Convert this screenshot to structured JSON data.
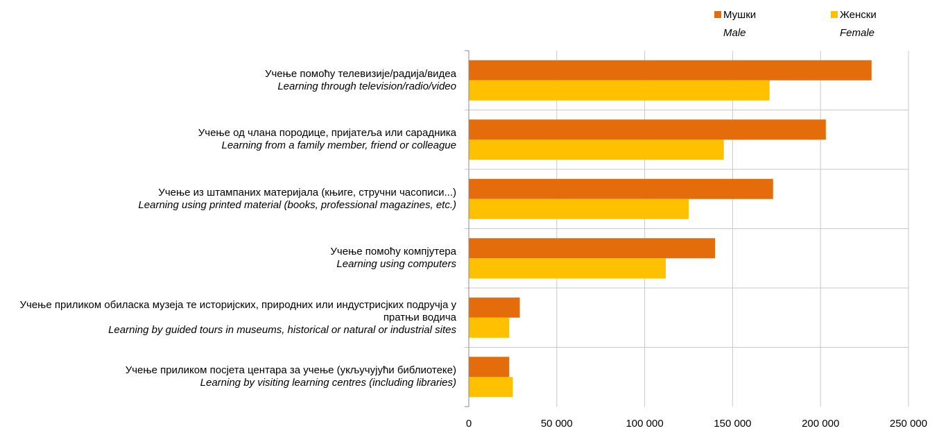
{
  "chart_data": {
    "type": "barh",
    "categories": [
      "Учење помоћу телевизије/радија/видеа",
      "Учење од члана породице, пријатеља или сарадника",
      "Учење из штампаних материјала (књиге, стручни часописи...)",
      "Учење помоћу компјутера",
      "Учење приликом обиласка музеја те историјских, природних или индустрисјких подручја у пратњи водича",
      "Учење приликом посјета центара за учење (укључујући библиотеке)"
    ],
    "categories_en": [
      "Learning through television/radio/video",
      "Learning from a family member, friend or colleague",
      "Learning using printed material (books, professional magazines, etc.)",
      "Learning using computers",
      "Learning by guided tours in museums, historical or natural or industrial sites",
      "Learning by visiting learning centres (including libraries)"
    ],
    "series": [
      {
        "name": "Мушки",
        "name_en": "Male",
        "color": "#e46c0a",
        "values": [
          229000,
          203000,
          173000,
          140000,
          29000,
          23000
        ]
      },
      {
        "name": "Женски",
        "name_en": "Female",
        "color": "#ffc000",
        "values": [
          171000,
          145000,
          125000,
          112000,
          23000,
          25000
        ]
      }
    ],
    "xlim": [
      0,
      250000
    ],
    "xticks": [
      0,
      {
        "value": 50000,
        "label": "50 000"
      },
      {
        "value": 100000,
        "label": "100 000"
      },
      {
        "value": 150000,
        "label": "150 000"
      },
      {
        "value": 200000,
        "label": "200 000"
      },
      {
        "value": 250000,
        "label": "250 000"
      }
    ],
    "grid": true
  }
}
